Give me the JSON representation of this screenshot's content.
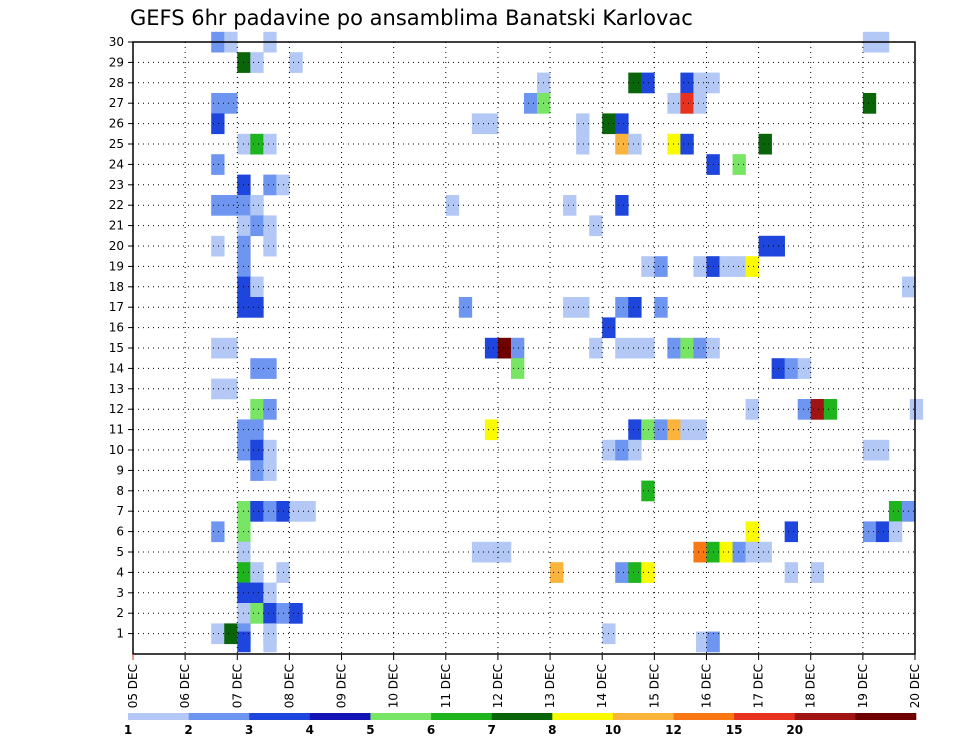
{
  "chart_data": {
    "type": "heatmap",
    "title": "GEFS 6hr padavine po ansamblima Banatski Karlovac",
    "xlabel": "",
    "ylabel": "",
    "x_ticks": [
      "05 DEC",
      "06 DEC",
      "07 DEC",
      "08 DEC",
      "09 DEC",
      "10 DEC",
      "11 DEC",
      "12 DEC",
      "13 DEC",
      "14 DEC",
      "15 DEC",
      "16 DEC",
      "17 DEC",
      "18 DEC",
      "19 DEC",
      "20 DEC"
    ],
    "y_ticks": [
      "1",
      "2",
      "3",
      "4",
      "5",
      "6",
      "7",
      "8",
      "9",
      "10",
      "11",
      "12",
      "13",
      "14",
      "15",
      "16",
      "17",
      "18",
      "19",
      "20",
      "21",
      "22",
      "23",
      "24",
      "25",
      "26",
      "27",
      "28",
      "29",
      "30"
    ],
    "xlim": [
      0,
      15
    ],
    "ylim": [
      0,
      30
    ],
    "grid": true,
    "colorbar": {
      "labels": [
        "1",
        "2",
        "3",
        "4",
        "5",
        "6",
        "7",
        "8",
        "10",
        "12",
        "15",
        "20"
      ],
      "colors": [
        "#b4c8f5",
        "#6e96f0",
        "#1e46dc",
        "#1414b4",
        "#78e664",
        "#1eb41e",
        "#0a640a",
        "#fafa00",
        "#fab43c",
        "#fa7814",
        "#e6321e",
        "#a01414",
        "#6e0000"
      ]
    },
    "cell_value_note": "each cell = 6-hour precipitation category index (0 = lightest band)",
    "cells": [
      [
        1.5,
        30,
        1
      ],
      [
        1.75,
        30,
        0
      ],
      [
        2.5,
        30,
        0
      ],
      [
        14.0,
        30,
        0
      ],
      [
        14.25,
        30,
        0
      ],
      [
        2.0,
        29,
        6
      ],
      [
        2.25,
        29,
        0
      ],
      [
        3.0,
        29,
        0
      ],
      [
        7.75,
        28,
        0
      ],
      [
        9.5,
        28,
        6
      ],
      [
        9.75,
        28,
        2
      ],
      [
        10.5,
        28,
        2
      ],
      [
        10.75,
        28,
        0
      ],
      [
        11.0,
        28,
        0
      ],
      [
        1.5,
        27,
        1
      ],
      [
        1.75,
        27,
        1
      ],
      [
        7.5,
        27,
        1
      ],
      [
        7.75,
        27,
        4
      ],
      [
        10.25,
        27,
        0
      ],
      [
        10.5,
        27,
        10
      ],
      [
        10.75,
        27,
        0
      ],
      [
        14.0,
        27,
        6
      ],
      [
        1.5,
        26,
        2
      ],
      [
        6.5,
        26,
        0
      ],
      [
        6.75,
        26,
        0
      ],
      [
        8.5,
        26,
        0
      ],
      [
        9.0,
        26,
        6
      ],
      [
        9.25,
        26,
        2
      ],
      [
        2.0,
        25,
        0
      ],
      [
        2.25,
        25,
        5
      ],
      [
        2.5,
        25,
        0
      ],
      [
        8.5,
        25,
        0
      ],
      [
        9.25,
        25,
        8
      ],
      [
        9.5,
        25,
        0
      ],
      [
        10.25,
        25,
        7
      ],
      [
        10.5,
        25,
        2
      ],
      [
        12.0,
        25,
        6
      ],
      [
        1.5,
        24,
        1
      ],
      [
        11.0,
        24,
        2
      ],
      [
        11.5,
        24,
        4
      ],
      [
        2.0,
        23,
        2
      ],
      [
        2.5,
        23,
        1
      ],
      [
        2.75,
        23,
        0
      ],
      [
        1.5,
        22,
        1
      ],
      [
        1.75,
        22,
        1
      ],
      [
        2.0,
        22,
        1
      ],
      [
        2.25,
        22,
        0
      ],
      [
        6.0,
        22,
        0
      ],
      [
        8.25,
        22,
        0
      ],
      [
        9.25,
        22,
        2
      ],
      [
        2.0,
        21,
        0
      ],
      [
        2.25,
        21,
        1
      ],
      [
        2.5,
        21,
        0
      ],
      [
        8.75,
        21,
        0
      ],
      [
        1.5,
        20,
        0
      ],
      [
        2.0,
        20,
        1
      ],
      [
        2.5,
        20,
        0
      ],
      [
        12.0,
        20,
        2
      ],
      [
        12.25,
        20,
        2
      ],
      [
        2.0,
        19,
        1
      ],
      [
        9.75,
        19,
        0
      ],
      [
        10.0,
        19,
        1
      ],
      [
        10.75,
        19,
        0
      ],
      [
        11.0,
        19,
        2
      ],
      [
        11.25,
        19,
        0
      ],
      [
        11.5,
        19,
        0
      ],
      [
        11.75,
        19,
        7
      ],
      [
        2.0,
        18,
        2
      ],
      [
        2.25,
        18,
        0
      ],
      [
        14.75,
        18,
        0
      ],
      [
        2.0,
        17,
        2
      ],
      [
        2.25,
        17,
        2
      ],
      [
        6.25,
        17,
        1
      ],
      [
        8.25,
        17,
        0
      ],
      [
        8.5,
        17,
        0
      ],
      [
        9.25,
        17,
        1
      ],
      [
        9.5,
        17,
        2
      ],
      [
        10.0,
        17,
        1
      ],
      [
        6.75,
        15,
        2
      ],
      [
        7.0,
        15,
        12
      ],
      [
        7.25,
        15,
        1
      ],
      [
        8.75,
        15,
        0
      ],
      [
        9.0,
        16,
        2
      ],
      [
        9.25,
        15,
        0
      ],
      [
        9.5,
        15,
        0
      ],
      [
        9.75,
        15,
        0
      ],
      [
        10.25,
        15,
        1
      ],
      [
        10.5,
        15,
        4
      ],
      [
        10.75,
        15,
        1
      ],
      [
        11.0,
        15,
        0
      ],
      [
        1.5,
        15,
        0
      ],
      [
        1.75,
        15,
        0
      ],
      [
        2.25,
        14,
        1
      ],
      [
        2.5,
        14,
        1
      ],
      [
        7.25,
        14,
        4
      ],
      [
        12.25,
        14,
        2
      ],
      [
        12.5,
        14,
        1
      ],
      [
        12.75,
        14,
        0
      ],
      [
        1.5,
        13,
        0
      ],
      [
        1.75,
        13,
        0
      ],
      [
        2.25,
        12,
        4
      ],
      [
        2.5,
        12,
        1
      ],
      [
        11.75,
        12,
        0
      ],
      [
        12.75,
        12,
        1
      ],
      [
        13.0,
        12,
        11
      ],
      [
        13.25,
        12,
        5
      ],
      [
        14.9,
        12,
        0
      ],
      [
        2.0,
        11,
        1
      ],
      [
        2.25,
        11,
        1
      ],
      [
        6.75,
        11,
        7
      ],
      [
        9.5,
        11,
        2
      ],
      [
        9.75,
        11,
        4
      ],
      [
        10.0,
        11,
        1
      ],
      [
        10.25,
        11,
        8
      ],
      [
        10.5,
        11,
        0
      ],
      [
        10.75,
        11,
        0
      ],
      [
        2.0,
        10,
        1
      ],
      [
        2.25,
        10,
        2
      ],
      [
        2.5,
        10,
        0
      ],
      [
        9.0,
        10,
        0
      ],
      [
        9.25,
        10,
        1
      ],
      [
        9.5,
        10,
        0
      ],
      [
        14.0,
        10,
        0
      ],
      [
        14.25,
        10,
        0
      ],
      [
        2.25,
        9,
        1
      ],
      [
        2.5,
        9,
        0
      ],
      [
        9.75,
        8,
        5
      ],
      [
        2.0,
        7,
        4
      ],
      [
        2.25,
        7,
        2
      ],
      [
        2.5,
        7,
        1
      ],
      [
        2.75,
        7,
        2
      ],
      [
        3.0,
        7,
        0
      ],
      [
        3.25,
        7,
        0
      ],
      [
        14.5,
        7,
        5
      ],
      [
        14.75,
        7,
        1
      ],
      [
        1.5,
        6,
        1
      ],
      [
        2.0,
        6,
        4
      ],
      [
        11.75,
        6,
        7
      ],
      [
        12.5,
        6,
        2
      ],
      [
        14.0,
        6,
        1
      ],
      [
        14.25,
        6,
        2
      ],
      [
        14.5,
        6,
        0
      ],
      [
        2.0,
        5,
        0
      ],
      [
        6.5,
        5,
        0
      ],
      [
        6.75,
        5,
        0
      ],
      [
        7.0,
        5,
        0
      ],
      [
        10.75,
        5,
        9
      ],
      [
        11.0,
        5,
        5
      ],
      [
        11.25,
        5,
        7
      ],
      [
        11.5,
        5,
        1
      ],
      [
        11.75,
        5,
        0
      ],
      [
        12.0,
        5,
        0
      ],
      [
        2.0,
        4,
        5
      ],
      [
        2.25,
        4,
        0
      ],
      [
        2.75,
        4,
        0
      ],
      [
        8.0,
        4,
        8
      ],
      [
        9.25,
        4,
        1
      ],
      [
        9.5,
        4,
        5
      ],
      [
        9.75,
        4,
        7
      ],
      [
        12.5,
        4,
        0
      ],
      [
        13.0,
        4,
        0
      ],
      [
        2.0,
        3,
        2
      ],
      [
        2.25,
        3,
        2
      ],
      [
        2.5,
        3,
        0
      ],
      [
        2.0,
        2,
        0
      ],
      [
        2.25,
        2,
        4
      ],
      [
        2.5,
        2,
        2
      ],
      [
        2.75,
        2,
        1
      ],
      [
        3.0,
        2,
        2
      ],
      [
        1.5,
        1,
        0
      ],
      [
        1.75,
        1,
        6
      ],
      [
        2.0,
        1,
        1
      ],
      [
        2.5,
        1,
        0
      ],
      [
        9.0,
        1,
        0
      ],
      [
        2.0,
        0.6,
        2
      ],
      [
        2.5,
        0.6,
        0
      ],
      [
        10.8,
        0.6,
        0
      ],
      [
        11.0,
        0.6,
        1
      ]
    ]
  }
}
